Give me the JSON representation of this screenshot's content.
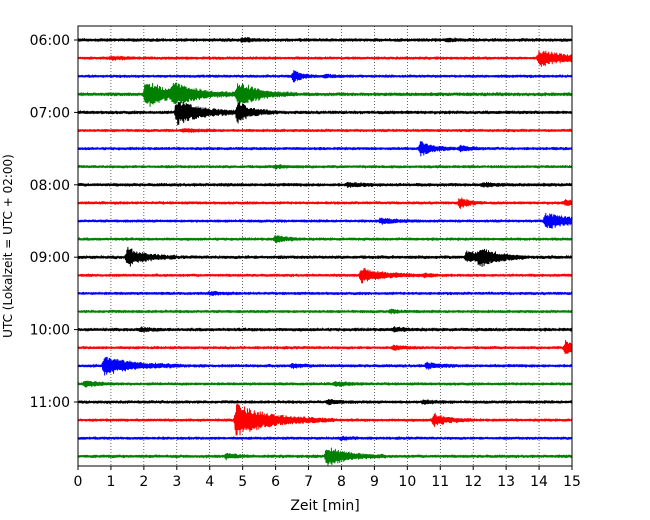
{
  "chart_data": {
    "type": "line",
    "xlabel": "Zeit  [min]",
    "ylabel": "UTC (Lokalzeit = UTC + 02:00)",
    "xlim": [
      0,
      15
    ],
    "x_ticks": [
      "0",
      "1",
      "2",
      "3",
      "4",
      "5",
      "6",
      "7",
      "8",
      "9",
      "10",
      "11",
      "12",
      "13",
      "14",
      "15"
    ],
    "y_ticks": [
      "06:00",
      "07:00",
      "08:00",
      "09:00",
      "10:00",
      "11:00"
    ],
    "grid": "vertical dotted",
    "traces": [
      {
        "start": "06:00",
        "color": "#000000",
        "noise": 0.14,
        "events": [
          {
            "t": 5.0,
            "amp": 0.2,
            "dur": 0.3
          },
          {
            "t": 11.2,
            "amp": 0.15,
            "dur": 0.3
          }
        ]
      },
      {
        "start": "06:15",
        "color": "#ff0000",
        "noise": 0.12,
        "events": [
          {
            "t": 14.0,
            "amp": 0.9,
            "dur": 0.8
          },
          {
            "t": 1.0,
            "amp": 0.15,
            "dur": 0.4
          }
        ]
      },
      {
        "start": "06:30",
        "color": "#0000ff",
        "noise": 0.12,
        "events": [
          {
            "t": 6.55,
            "amp": 0.6,
            "dur": 0.25
          },
          {
            "t": 7.5,
            "amp": 0.15,
            "dur": 0.3
          }
        ]
      },
      {
        "start": "06:45",
        "color": "#008000",
        "noise": 0.15,
        "events": [
          {
            "t": 2.05,
            "amp": 1.6,
            "dur": 0.6
          },
          {
            "t": 2.9,
            "amp": 0.9,
            "dur": 0.9
          },
          {
            "t": 4.85,
            "amp": 1.3,
            "dur": 0.6
          }
        ]
      },
      {
        "start": "07:00",
        "color": "#000000",
        "noise": 0.14,
        "events": [
          {
            "t": 3.0,
            "amp": 1.4,
            "dur": 0.7
          },
          {
            "t": 4.85,
            "amp": 1.1,
            "dur": 0.4
          }
        ]
      },
      {
        "start": "07:15",
        "color": "#ff0000",
        "noise": 0.12,
        "events": [
          {
            "t": 3.2,
            "amp": 0.15,
            "dur": 0.4
          }
        ]
      },
      {
        "start": "07:30",
        "color": "#0000ff",
        "noise": 0.12,
        "events": [
          {
            "t": 10.4,
            "amp": 0.8,
            "dur": 0.35
          },
          {
            "t": 11.6,
            "amp": 0.3,
            "dur": 0.3
          }
        ]
      },
      {
        "start": "07:45",
        "color": "#008000",
        "noise": 0.12,
        "events": [
          {
            "t": 6.0,
            "amp": 0.15,
            "dur": 0.3
          }
        ]
      },
      {
        "start": "08:00",
        "color": "#000000",
        "noise": 0.14,
        "events": [
          {
            "t": 8.2,
            "amp": 0.2,
            "dur": 0.4
          },
          {
            "t": 12.3,
            "amp": 0.2,
            "dur": 0.3
          }
        ]
      },
      {
        "start": "08:15",
        "color": "#ff0000",
        "noise": 0.12,
        "events": [
          {
            "t": 11.6,
            "amp": 0.6,
            "dur": 0.25
          },
          {
            "t": 14.8,
            "amp": 0.3,
            "dur": 0.3
          }
        ]
      },
      {
        "start": "08:30",
        "color": "#0000ff",
        "noise": 0.12,
        "events": [
          {
            "t": 9.2,
            "amp": 0.3,
            "dur": 0.4
          },
          {
            "t": 14.2,
            "amp": 0.9,
            "dur": 0.8
          }
        ]
      },
      {
        "start": "08:45",
        "color": "#008000",
        "noise": 0.12,
        "events": [
          {
            "t": 6.0,
            "amp": 0.4,
            "dur": 0.3
          }
        ]
      },
      {
        "start": "09:00",
        "color": "#000000",
        "noise": 0.14,
        "events": [
          {
            "t": 1.5,
            "amp": 1.0,
            "dur": 0.5
          },
          {
            "t": 11.8,
            "amp": 0.6,
            "dur": 0.6
          },
          {
            "t": 12.2,
            "amp": 0.8,
            "dur": 0.5
          }
        ]
      },
      {
        "start": "09:15",
        "color": "#ff0000",
        "noise": 0.12,
        "events": [
          {
            "t": 8.6,
            "amp": 0.8,
            "dur": 0.6
          },
          {
            "t": 10.5,
            "amp": 0.2,
            "dur": 0.3
          }
        ]
      },
      {
        "start": "09:30",
        "color": "#0000ff",
        "noise": 0.12,
        "events": [
          {
            "t": 4.0,
            "amp": 0.15,
            "dur": 0.3
          }
        ]
      },
      {
        "start": "09:45",
        "color": "#008000",
        "noise": 0.12,
        "events": [
          {
            "t": 9.5,
            "amp": 0.15,
            "dur": 0.3
          }
        ]
      },
      {
        "start": "10:00",
        "color": "#000000",
        "noise": 0.14,
        "events": [
          {
            "t": 1.9,
            "amp": 0.2,
            "dur": 0.3
          },
          {
            "t": 9.6,
            "amp": 0.2,
            "dur": 0.3
          }
        ]
      },
      {
        "start": "10:15",
        "color": "#ff0000",
        "noise": 0.12,
        "events": [
          {
            "t": 9.6,
            "amp": 0.2,
            "dur": 0.3
          },
          {
            "t": 14.8,
            "amp": 0.7,
            "dur": 0.5
          }
        ]
      },
      {
        "start": "10:30",
        "color": "#0000ff",
        "noise": 0.13,
        "events": [
          {
            "t": 0.8,
            "amp": 1.0,
            "dur": 0.8
          },
          {
            "t": 6.5,
            "amp": 0.2,
            "dur": 0.3
          },
          {
            "t": 10.6,
            "amp": 0.35,
            "dur": 0.3
          }
        ]
      },
      {
        "start": "10:45",
        "color": "#008000",
        "noise": 0.12,
        "events": [
          {
            "t": 0.2,
            "amp": 0.3,
            "dur": 0.4
          },
          {
            "t": 7.8,
            "amp": 0.2,
            "dur": 0.4
          }
        ]
      },
      {
        "start": "11:00",
        "color": "#000000",
        "noise": 0.13,
        "events": [
          {
            "t": 7.6,
            "amp": 0.2,
            "dur": 0.3
          },
          {
            "t": 10.5,
            "amp": 0.2,
            "dur": 0.3
          }
        ]
      },
      {
        "start": "11:15",
        "color": "#ff0000",
        "noise": 0.12,
        "events": [
          {
            "t": 4.8,
            "amp": 1.8,
            "dur": 1.0
          },
          {
            "t": 10.8,
            "amp": 0.7,
            "dur": 0.4
          }
        ]
      },
      {
        "start": "11:30",
        "color": "#0000ff",
        "noise": 0.12,
        "events": [
          {
            "t": 8.0,
            "amp": 0.15,
            "dur": 0.3
          }
        ]
      },
      {
        "start": "11:45",
        "color": "#008000",
        "noise": 0.13,
        "events": [
          {
            "t": 4.5,
            "amp": 0.25,
            "dur": 0.3
          },
          {
            "t": 7.55,
            "amp": 1.1,
            "dur": 0.6
          }
        ]
      }
    ]
  }
}
